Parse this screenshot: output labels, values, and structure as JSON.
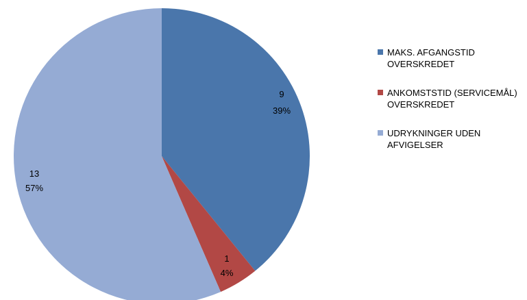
{
  "chart_data": {
    "type": "pie",
    "title": "",
    "slices": [
      {
        "label": "MAKS. AFGANGSTID OVERSKREDET",
        "count": "9",
        "percent": "39%",
        "value": 9,
        "color": "#4A76AB"
      },
      {
        "label": "ANKOMSTSTID (SERVICEMÅL) OVERSKREDET",
        "count": "1",
        "percent": "4%",
        "value": 1,
        "color": "#B24845"
      },
      {
        "label": "UDRYKNINGER UDEN AFVIGELSER",
        "count": "13",
        "percent": "57%",
        "value": 13,
        "color": "#95ABD4"
      }
    ],
    "legend_position": "right"
  }
}
